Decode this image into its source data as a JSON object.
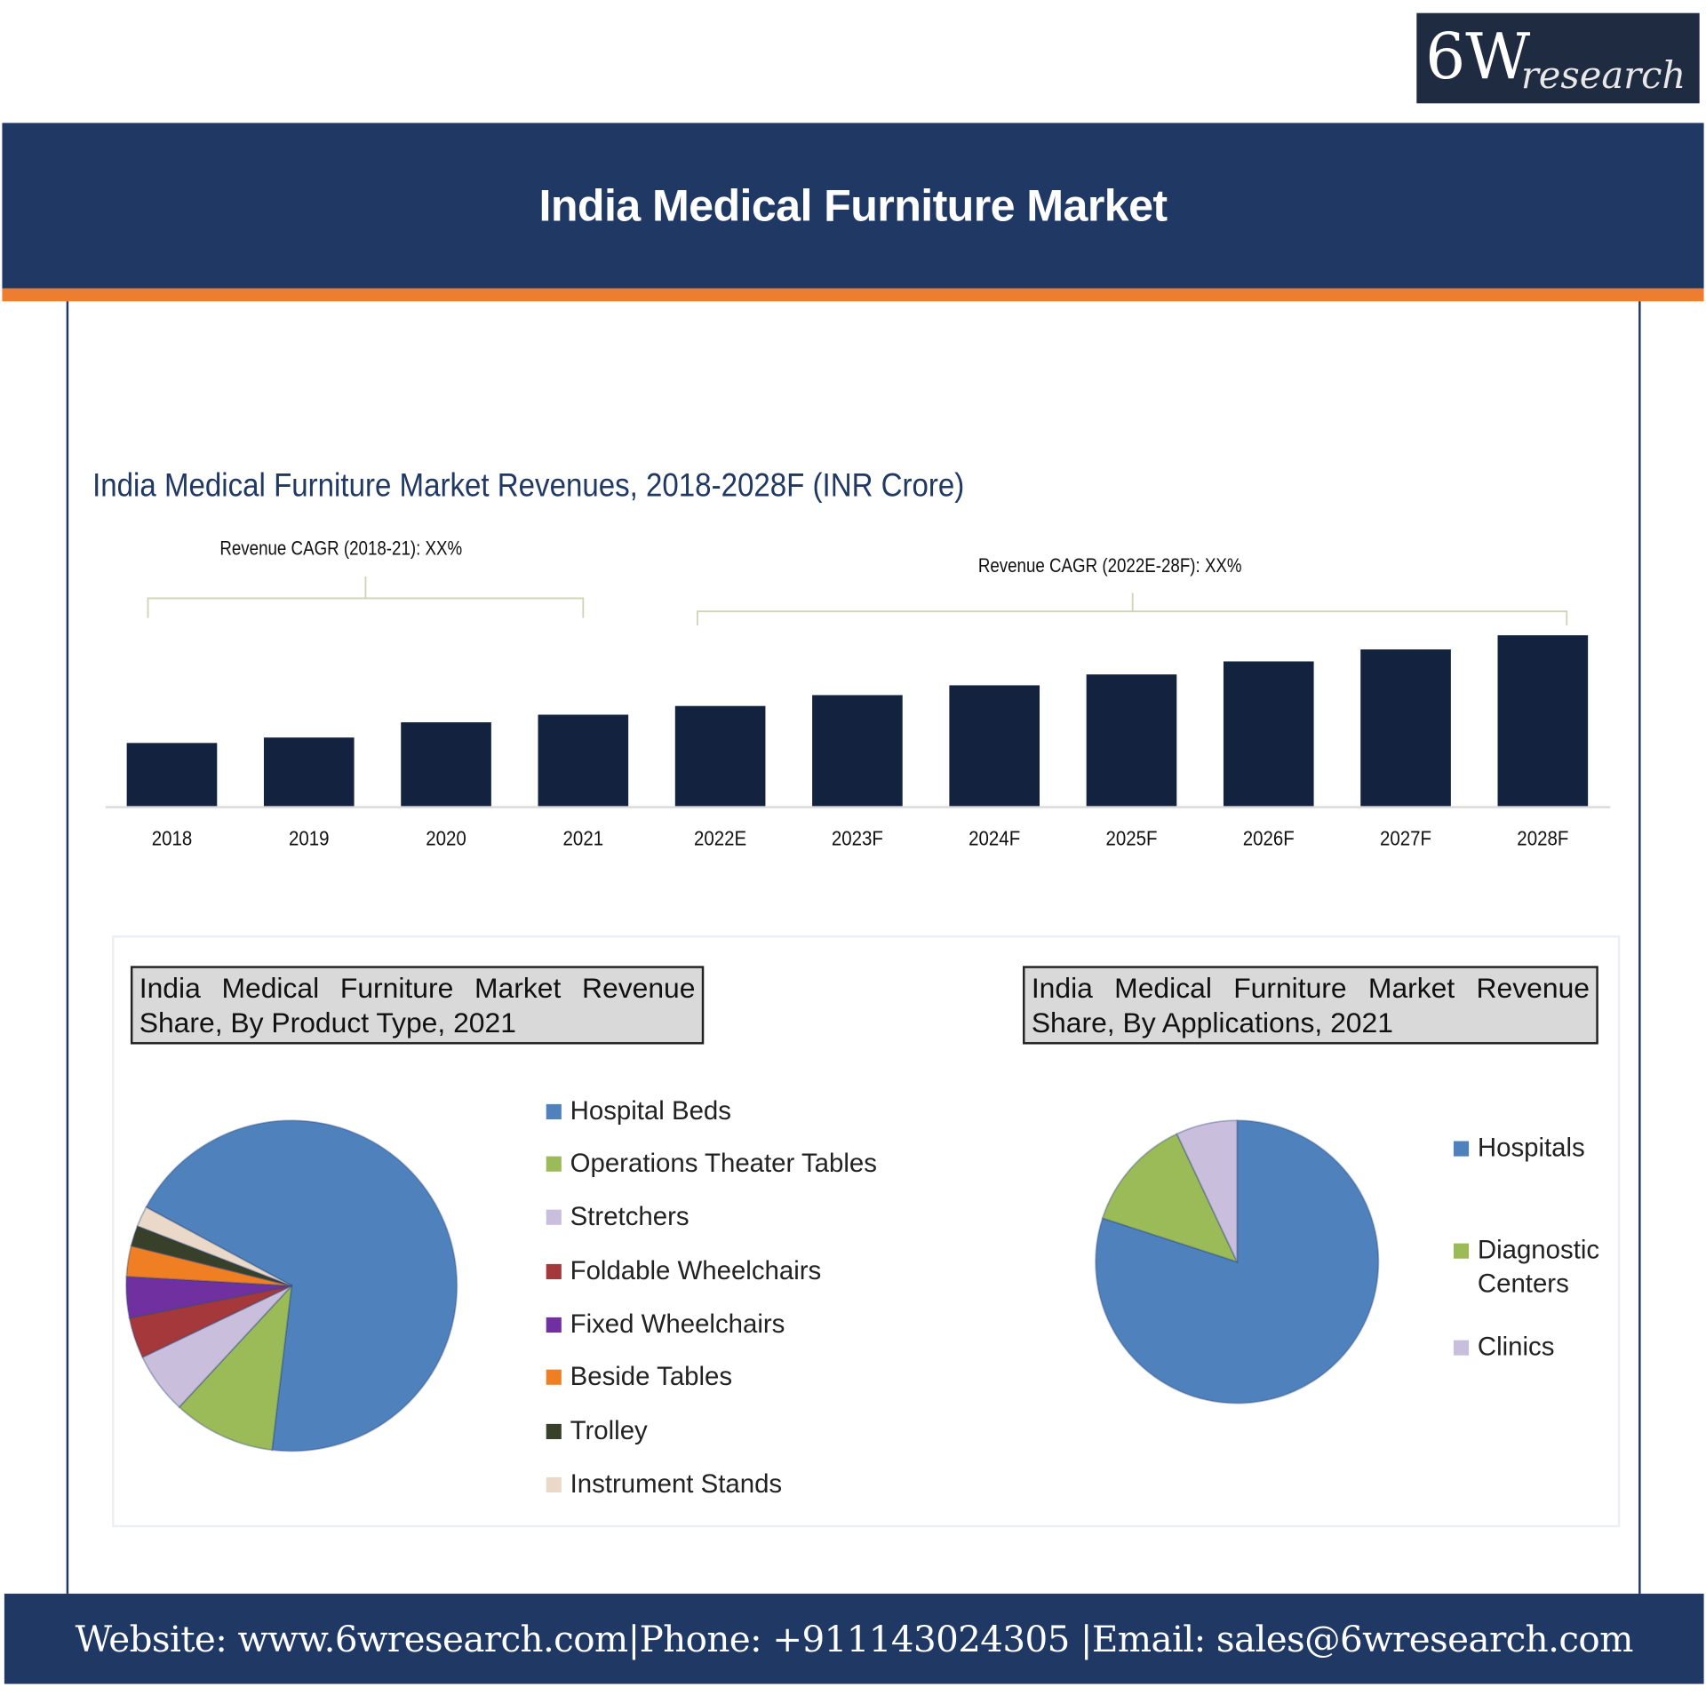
{
  "logo": {
    "main": "6W",
    "sub": "research"
  },
  "header": {
    "title": "India Medical Furniture Market"
  },
  "colors": {
    "navy": "#203864",
    "accent_orange": "#ed7d31",
    "bar": "#13233f"
  },
  "chart_data": [
    {
      "type": "bar",
      "title": "India Medical Furniture Market Revenues, 2018-2028F (INR Crore)",
      "categories": [
        "2018",
        "2019",
        "2020",
        "2021",
        "2022E",
        "2023F",
        "2024F",
        "2025F",
        "2026F",
        "2027F",
        "2028F"
      ],
      "values": [
        58,
        63,
        77,
        84,
        92,
        102,
        111,
        121,
        133,
        144,
        157
      ],
      "annotations": [
        "Revenue CAGR (2018-21): XX%",
        "Revenue CAGR (2022E-28F): XX%"
      ],
      "xlabel": "",
      "ylabel": "",
      "grid": false
    },
    {
      "type": "pie",
      "title": "India Medical Furniture Market Revenue Share, By Product Type, 2021",
      "labels": [
        "Hospital Beds",
        "Operations Theater Tables",
        "Stretchers",
        "Foldable Wheelchairs",
        "Fixed Wheelchairs",
        "Beside Tables",
        "Trolley",
        "Instrument Stands"
      ],
      "values": [
        69,
        10,
        6,
        4,
        4,
        3,
        2,
        2
      ],
      "colors": [
        "#4f81bd",
        "#9bbb59",
        "#c9bedb",
        "#a5383a",
        "#7030a0",
        "#f07f24",
        "#39402a",
        "#ead9c8"
      ],
      "legend": "right"
    },
    {
      "type": "pie",
      "title": "India Medical Furniture Market Revenue Share, By Applications, 2021",
      "labels": [
        "Hospitals",
        "Diagnostic Centers",
        "Clinics"
      ],
      "values": [
        80,
        13,
        7
      ],
      "colors": [
        "#4f81bd",
        "#9bbb59",
        "#c9bedb"
      ],
      "legend": "right"
    }
  ],
  "footer": {
    "text": "Website: www.6wresearch.com|Phone: +911143024305 |Email: sales@6wresearch.com"
  }
}
